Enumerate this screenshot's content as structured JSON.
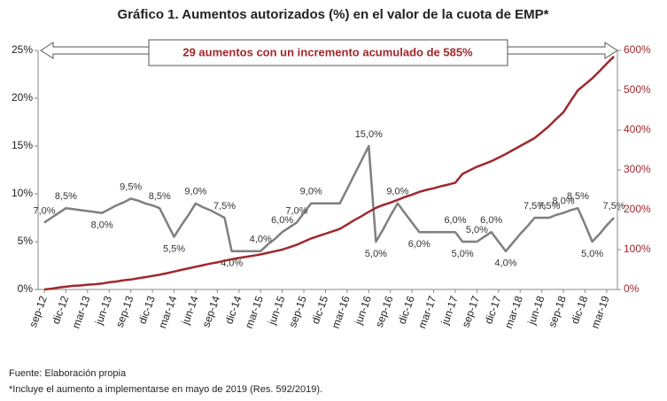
{
  "chart_data": {
    "type": "line",
    "title": "Gráfico 1. Aumentos autorizados (%) en el valor de la cuota de EMP*",
    "annotation": "29 aumentos con un incremento acumulado de 585%",
    "footnotes": [
      "Fuente: Elaboración propia",
      "*Incluye el aumento a implementarse en mayo de 2019 (Res. 592/2019)."
    ],
    "categories": [
      "sep-12",
      null,
      null,
      "dic-12",
      null,
      null,
      "mar-13",
      null,
      null,
      "jun-13",
      null,
      null,
      "sep-13",
      null,
      null,
      "dic-13",
      null,
      null,
      "mar-14",
      null,
      null,
      "jun-14",
      null,
      null,
      "sep-14",
      null,
      null,
      "dic-14",
      null,
      null,
      "mar-15",
      null,
      null,
      "jun-15",
      null,
      null,
      "sep-15",
      null,
      null,
      "dic-15",
      null,
      null,
      "mar-16",
      null,
      null,
      "jun-16",
      null,
      null,
      "sep-16",
      null,
      null,
      "dic-16",
      null,
      null,
      "mar-17",
      null,
      null,
      "jun-17",
      null,
      null,
      "sep-17",
      null,
      null,
      "dic-17",
      null,
      null,
      "mar-18",
      null,
      null,
      "jun-18",
      null,
      null,
      "sep-18",
      null,
      null,
      "dic-18",
      null,
      null,
      "mar-19",
      null
    ],
    "series": [
      {
        "color": "#7f7f7f",
        "values": [
          7.0,
          7.5,
          8.0,
          8.5,
          8.4,
          8.3,
          8.2,
          8.1,
          8.0,
          8.4,
          8.8,
          9.1,
          9.5,
          9.3,
          9.0,
          8.8,
          8.5,
          7.0,
          5.5,
          6.7,
          7.8,
          9.0,
          8.6,
          8.3,
          7.9,
          7.5,
          4.0,
          4.0,
          4.0,
          4.0,
          4.0,
          4.7,
          5.3,
          6.0,
          6.5,
          7.0,
          8.0,
          9.0,
          9.0,
          9.0,
          9.0,
          9.0,
          10.5,
          12.0,
          13.5,
          15.0,
          5.0,
          6.3,
          7.7,
          9.0,
          8.0,
          7.0,
          6.0,
          6.0,
          6.0,
          6.0,
          6.0,
          6.0,
          5.0,
          5.0,
          5.0,
          5.5,
          6.0,
          5.0,
          4.0,
          4.9,
          5.8,
          6.6,
          7.5,
          7.5,
          7.5,
          7.8,
          8.0,
          8.3,
          8.5,
          6.8,
          5.0,
          5.8,
          6.7,
          7.5
        ],
        "value_labels": [
          "7,0%",
          null,
          null,
          "8,5%",
          null,
          null,
          null,
          null,
          "8,0%",
          null,
          null,
          null,
          "9,5%",
          null,
          null,
          null,
          "8,5%",
          null,
          "5,5%",
          null,
          null,
          "9,0%",
          null,
          null,
          null,
          "7,5%",
          "4,0%",
          null,
          null,
          null,
          "4,0%",
          null,
          null,
          "6,0%",
          null,
          "7,0%",
          null,
          "9,0%",
          null,
          null,
          null,
          null,
          null,
          null,
          null,
          "15,0%",
          "5,0%",
          null,
          null,
          "9,0%",
          null,
          null,
          "6,0%",
          null,
          null,
          null,
          null,
          "6,0%",
          "5,0%",
          null,
          "5,0%",
          null,
          "6,0%",
          null,
          "4,0%",
          null,
          null,
          null,
          "7,5%",
          null,
          "7,5%",
          null,
          "8,0%",
          null,
          "8,5%",
          null,
          "5,0%",
          null,
          null,
          "7,5%"
        ]
      },
      {
        "color": "#a0282c",
        "axis": "y2",
        "values": [
          0,
          2,
          5,
          7,
          9,
          10,
          12,
          13,
          15,
          18,
          20,
          23,
          25,
          28,
          31,
          34,
          37,
          41,
          45,
          49,
          53,
          57,
          61,
          65,
          68,
          72,
          76,
          79,
          82,
          85,
          88,
          92,
          96,
          100,
          106,
          112,
          120,
          128,
          134,
          140,
          146,
          152,
          163,
          174,
          184,
          195,
          205,
          212,
          218,
          225,
          232,
          238,
          245,
          250,
          254,
          259,
          263,
          268,
          290,
          299,
          308,
          315,
          322,
          331,
          340,
          350,
          360,
          370,
          380,
          395,
          410,
          428,
          445,
          473,
          500,
          515,
          530,
          548,
          567,
          585
        ]
      }
    ],
    "ylim": [
      0,
      25
    ],
    "yticks": [
      {
        "value": 0,
        "label": "0%"
      },
      {
        "value": 5,
        "label": "5%"
      },
      {
        "value": 10,
        "label": "10%"
      },
      {
        "value": 15,
        "label": "15%"
      },
      {
        "value": 20,
        "label": "20%"
      },
      {
        "value": 25,
        "label": "25%"
      }
    ],
    "y2lim": [
      0,
      600
    ],
    "y2ticks": [
      {
        "value": 0,
        "label": "0%"
      },
      {
        "value": 100,
        "label": "100%"
      },
      {
        "value": 200,
        "label": "200%"
      },
      {
        "value": 300,
        "label": "300%"
      },
      {
        "value": 400,
        "label": "400%"
      },
      {
        "value": 500,
        "label": "500%"
      },
      {
        "value": 600,
        "label": "600%"
      }
    ]
  }
}
